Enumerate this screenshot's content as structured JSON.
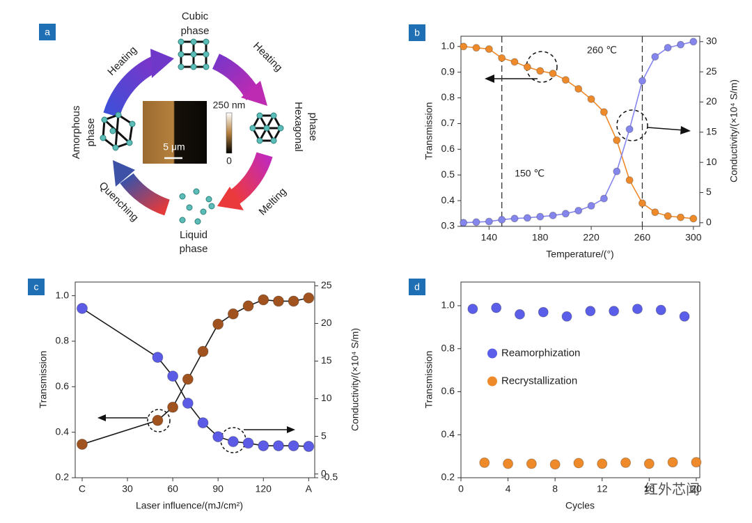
{
  "diagram": {
    "panel": "a",
    "phases": [
      [
        "Cubic",
        "phase"
      ],
      [
        "Hexagonal",
        "phase"
      ],
      [
        "Liquid",
        "phase"
      ],
      [
        "Amorphous",
        "phase"
      ]
    ],
    "processes": [
      "Heating",
      "Heating",
      "Melting",
      "Quenching"
    ],
    "afm": {
      "max": "250 nm",
      "min": "0",
      "scale": "5 μm"
    }
  },
  "chart_data": [
    {
      "type": "line",
      "panel": "b",
      "x_label": "Temperature/(°)",
      "y_label": "Transmission",
      "y2_label": "Conductivity/(×10⁴ S/m)",
      "x": [
        120,
        130,
        140,
        150,
        160,
        170,
        180,
        190,
        200,
        210,
        220,
        230,
        240,
        250,
        260,
        270,
        280,
        290,
        300
      ],
      "series": [
        {
          "color": "#ee8a2a",
          "values": [
            1.0,
            0.995,
            0.99,
            0.955,
            0.94,
            0.92,
            0.905,
            0.895,
            0.87,
            0.835,
            0.795,
            0.745,
            0.635,
            0.48,
            0.39,
            0.355,
            0.34,
            0.335,
            0.33
          ]
        },
        {
          "color": "#8585ee",
          "axis": "y2",
          "values": [
            0.0,
            0.1,
            0.2,
            0.5,
            0.7,
            0.8,
            1.0,
            1.2,
            1.5,
            2.0,
            2.8,
            4.0,
            8.5,
            15.5,
            23.5,
            27.5,
            29.0,
            29.5,
            30.0
          ]
        }
      ],
      "vlines": [
        {
          "x": 150,
          "label": "150 ℃"
        },
        {
          "x": 260,
          "label": "260 ℃"
        }
      ],
      "xlim": [
        118,
        305
      ],
      "xticks": [
        140,
        180,
        220,
        260,
        300
      ],
      "ylim": [
        0.3,
        1.04
      ],
      "yticks": [
        0.3,
        0.4,
        0.5,
        0.6,
        0.7,
        0.8,
        0.9,
        {
          "value": 1,
          "label": "1.0"
        }
      ],
      "y2lim": [
        -0.6,
        30.9
      ],
      "y2ticks": [
        0,
        5,
        10,
        15,
        20,
        25,
        30
      ]
    },
    {
      "type": "line",
      "panel": "c",
      "line_color": "#1a1a1a",
      "x_label": "Laser influence/(mJ/cm²)",
      "y_label": "Transmission",
      "y2_label": "Conductivity/(×10⁴ S/m)",
      "x": [
        0,
        50,
        60,
        70,
        80,
        90,
        100,
        110,
        120,
        130,
        140,
        150
      ],
      "series": [
        {
          "color": "#a0521f",
          "values": [
            0.347,
            0.452,
            0.51,
            0.633,
            0.755,
            0.875,
            0.92,
            0.955,
            0.982,
            0.976,
            0.976,
            0.99
          ]
        },
        {
          "color": "#5b5be6",
          "axis": "y2",
          "values": [
            22.0,
            15.5,
            13.0,
            9.4,
            6.8,
            4.95,
            4.3,
            4.1,
            3.75,
            3.75,
            3.75,
            3.66
          ]
        }
      ],
      "xlim": [
        -4.6,
        154
      ],
      "xticks": [
        {
          "value": 0,
          "label": "C"
        },
        30,
        60,
        90,
        120,
        {
          "value": 150,
          "label": "A"
        }
      ],
      "ylim": [
        0.2,
        1.06
      ],
      "yticks": [
        0.2,
        0.4,
        0.6,
        0.8,
        {
          "value": 1,
          "label": "1.0"
        }
      ],
      "y2lim": [
        -0.5,
        25.5
      ],
      "y2ticks": [
        -0.5,
        0,
        5,
        10,
        15,
        20,
        25
      ]
    },
    {
      "type": "scatter",
      "panel": "d",
      "legend": "center left",
      "x_label": "Cycles",
      "y_label": "Transmission",
      "series": [
        {
          "name": "Reamorphization",
          "color": "#5a5ee8",
          "x": [
            1,
            3,
            5,
            7,
            9,
            11,
            13,
            15,
            17,
            19
          ],
          "values": [
            0.985,
            0.99,
            0.96,
            0.97,
            0.95,
            0.975,
            0.975,
            0.985,
            0.98,
            0.95
          ]
        },
        {
          "name": "Recrystallization",
          "color": "#ee8a2a",
          "x": [
            2,
            4,
            6,
            8,
            10,
            12,
            14,
            16,
            18,
            20
          ],
          "values": [
            0.27,
            0.265,
            0.265,
            0.262,
            0.268,
            0.265,
            0.27,
            0.265,
            0.272,
            0.272
          ]
        }
      ],
      "xlim": [
        0,
        20.3
      ],
      "xticks": [
        0,
        4,
        8,
        12,
        16,
        20
      ],
      "ylim": [
        0.2,
        1.11
      ],
      "yticks": [
        0.2,
        0.4,
        0.6,
        0.8,
        {
          "value": 1,
          "label": "1.0"
        }
      ]
    }
  ],
  "watermark": "红外芯闻"
}
